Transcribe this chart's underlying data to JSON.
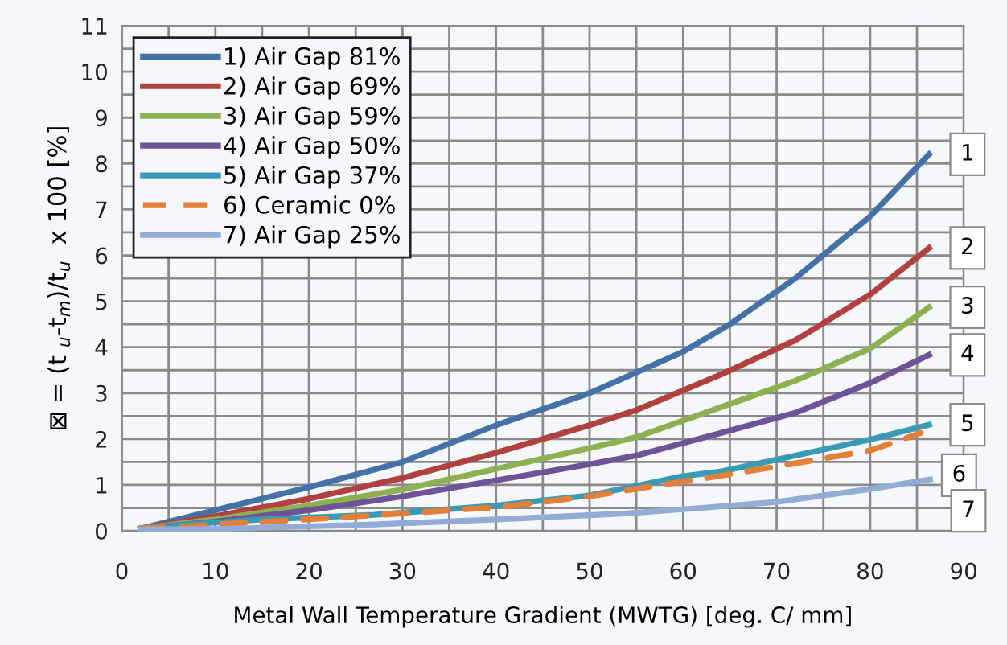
{
  "chart_data": {
    "type": "line",
    "xlabel": "Metal Wall Temperature Gradient (MWTG) [deg. C/ mm]",
    "ylabel": "⊠ = (t $_{u}$-t$_{m}$)/t$_{u}$  x 100 [%]",
    "xlim": [
      0,
      90
    ],
    "ylim": [
      0,
      11
    ],
    "xticks": [
      0,
      {
        "value": 5,
        "label": null
      },
      10,
      {
        "value": 15,
        "label": null
      },
      20,
      {
        "value": 25,
        "label": null
      },
      30,
      {
        "value": 35,
        "label": null
      },
      40,
      {
        "value": 45,
        "label": null
      },
      50,
      {
        "value": 55,
        "label": null
      },
      60,
      {
        "value": 65,
        "label": null
      },
      70,
      {
        "value": 75,
        "label": null
      },
      80,
      {
        "value": 85,
        "label": null
      },
      90
    ],
    "yticks": [
      0,
      {
        "value": 0.5,
        "label": null
      },
      1,
      {
        "value": 1.5,
        "label": null
      },
      2,
      {
        "value": 2.5,
        "label": null
      },
      3,
      {
        "value": 3.5,
        "label": null
      },
      4,
      {
        "value": 4.5,
        "label": null
      },
      5,
      {
        "value": 5.5,
        "label": null
      },
      6,
      {
        "value": 6.5,
        "label": null
      },
      7,
      {
        "value": 7.5,
        "label": null
      },
      8,
      {
        "value": 8.5,
        "label": null
      },
      9,
      {
        "value": 9.5,
        "label": null
      },
      10,
      {
        "value": 10.5,
        "label": null
      },
      11
    ],
    "grid": true,
    "legend": "top left",
    "marker": "none",
    "series": [
      {
        "name": "1) Air Gap 81%",
        "color": "#4472a8",
        "x": [
          2,
          10,
          20,
          30,
          40,
          50,
          60,
          65,
          72,
          80,
          86.3
        ],
        "values": [
          0.05,
          0.45,
          0.95,
          1.5,
          2.3,
          3.0,
          3.9,
          4.5,
          5.5,
          6.85,
          8.2
        ]
      },
      {
        "name": "2) Air Gap 69%",
        "color": "#b0413e",
        "x": [
          2,
          10,
          20,
          30,
          40,
          50,
          55,
          64,
          72,
          80,
          86.3
        ],
        "values": [
          0.05,
          0.32,
          0.7,
          1.15,
          1.7,
          2.3,
          2.63,
          3.4,
          4.15,
          5.15,
          6.16
        ]
      },
      {
        "name": "3) Air Gap 59%",
        "color": "#8db050",
        "x": [
          2,
          10,
          20,
          30,
          40,
          50,
          55,
          64,
          72,
          80,
          86.3
        ],
        "values": [
          0.05,
          0.25,
          0.55,
          0.9,
          1.35,
          1.8,
          2.04,
          2.69,
          3.27,
          3.97,
          4.87
        ]
      },
      {
        "name": "4) Air Gap 50%",
        "color": "#6f5397",
        "x": [
          2,
          10,
          20,
          30,
          40,
          50,
          55,
          64,
          72,
          80,
          86.3
        ],
        "values": [
          0.05,
          0.2,
          0.45,
          0.75,
          1.1,
          1.45,
          1.64,
          2.13,
          2.57,
          3.22,
          3.83
        ]
      },
      {
        "name": "5) Air Gap 37%",
        "color": "#3a9ab5",
        "x": [
          2,
          7,
          15,
          27,
          40,
          50,
          60,
          64,
          72,
          80,
          86.3
        ],
        "values": [
          0.05,
          0.14,
          0.25,
          0.35,
          0.55,
          0.77,
          1.19,
          1.29,
          1.64,
          1.99,
          2.31
        ]
      },
      {
        "name": "6) Ceramic 0%",
        "color": "#e2803a",
        "line_style": "dashed",
        "x": [
          2,
          7,
          24,
          40.5,
          50,
          57,
          64,
          72,
          80,
          85.4
        ],
        "values": [
          0.05,
          0.1,
          0.3,
          0.52,
          0.75,
          0.98,
          1.2,
          1.47,
          1.75,
          2.13
        ]
      },
      {
        "name": "7) Air Gap 25%",
        "color": "#93acd6",
        "x": [
          2,
          10,
          27,
          40,
          54,
          62,
          70,
          80,
          86.4
        ],
        "values": [
          0.03,
          0.04,
          0.14,
          0.25,
          0.38,
          0.5,
          0.63,
          0.91,
          1.12
        ]
      }
    ],
    "annotations": [
      {
        "text": "1",
        "x": 86.3,
        "y": 8.2
      },
      {
        "text": "2",
        "x": 86.3,
        "y": 6.16
      },
      {
        "text": "3",
        "x": 86.3,
        "y": 4.87
      },
      {
        "text": "4",
        "x": 86.3,
        "y": 3.83
      },
      {
        "text": "5",
        "x": 86.3,
        "y": 2.31
      },
      {
        "text": "6",
        "x": 85.4,
        "y": 2.13
      },
      {
        "text": "7",
        "x": 86.4,
        "y": 1.12
      }
    ]
  }
}
